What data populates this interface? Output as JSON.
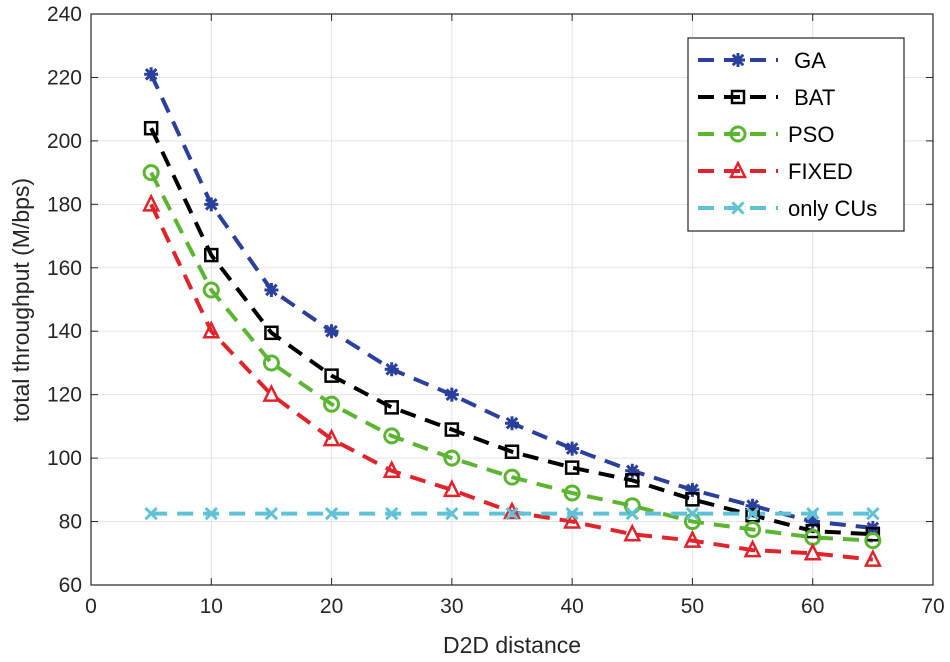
{
  "chart_data": {
    "type": "line",
    "title": "",
    "xlabel": "D2D distance",
    "ylabel": "total throughput (M/bps)",
    "xlim": [
      0,
      70
    ],
    "ylim": [
      60,
      240
    ],
    "xticks": [
      0,
      10,
      20,
      30,
      40,
      50,
      60,
      70
    ],
    "yticks": [
      60,
      80,
      100,
      120,
      140,
      160,
      180,
      200,
      220,
      240
    ],
    "grid": true,
    "legend_position": "top-right",
    "x": [
      5,
      10,
      15,
      20,
      25,
      30,
      35,
      40,
      45,
      50,
      55,
      60,
      65
    ],
    "series": [
      {
        "name": "GA",
        "legend_label": " GA",
        "color": "#2b3f9c",
        "marker": "star",
        "values": [
          221,
          180,
          153,
          140,
          128,
          120,
          111,
          103,
          96,
          90,
          85,
          80,
          78
        ]
      },
      {
        "name": "BAT",
        "legend_label": " BAT",
        "color": "#000000",
        "marker": "square",
        "values": [
          204,
          164,
          139.5,
          126,
          116,
          109,
          102,
          97,
          93,
          87,
          82,
          77,
          76
        ]
      },
      {
        "name": "PSO",
        "legend_label": "PSO",
        "color": "#5cb531",
        "marker": "circle",
        "values": [
          190,
          153,
          130,
          117,
          107,
          100,
          94,
          89,
          85,
          80,
          77.5,
          75,
          74
        ]
      },
      {
        "name": "FIXED",
        "legend_label": "FIXED",
        "color": "#e0242b",
        "marker": "triangle",
        "values": [
          180,
          140,
          120,
          106,
          96,
          90,
          83,
          80,
          76,
          74,
          71,
          70,
          68
        ]
      },
      {
        "name": "only CUs",
        "legend_label": "only CUs",
        "color": "#5fc2d6",
        "marker": "x",
        "values": [
          82.5,
          82.5,
          82.5,
          82.5,
          82.5,
          82.5,
          82.5,
          82.5,
          82.5,
          82.5,
          82.5,
          82.5,
          82.5
        ]
      }
    ]
  }
}
